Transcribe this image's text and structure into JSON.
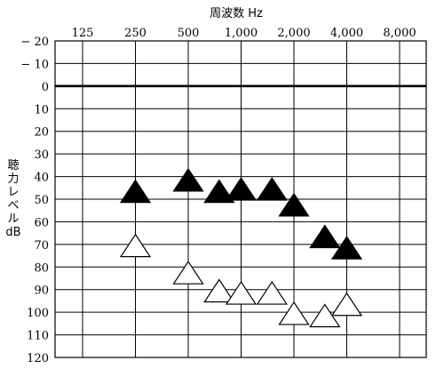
{
  "chart_data": {
    "type": "scatter",
    "title": "周波数 Hz",
    "ylabel_lines": [
      "聴",
      "力",
      "レ",
      "ベ",
      "ル",
      "dB"
    ],
    "x_ticks": [
      {
        "label": "125",
        "hz": 125
      },
      {
        "label": "250",
        "hz": 250
      },
      {
        "label": "500",
        "hz": 500
      },
      {
        "label": "1,000",
        "hz": 1000
      },
      {
        "label": "2,000",
        "hz": 2000
      },
      {
        "label": "4,000",
        "hz": 4000
      },
      {
        "label": "8,000",
        "hz": 8000
      }
    ],
    "x_scale": "log2",
    "xlim": [
      125,
      8000
    ],
    "y_ticks": [
      {
        "label": "− 20",
        "value": -20
      },
      {
        "label": "− 10",
        "value": -10
      },
      {
        "label": "0",
        "value": 0
      },
      {
        "label": "10",
        "value": 10
      },
      {
        "label": "20",
        "value": 20
      },
      {
        "label": "30",
        "value": 30
      },
      {
        "label": "40",
        "value": 40
      },
      {
        "label": "50",
        "value": 50
      },
      {
        "label": "60",
        "value": 60
      },
      {
        "label": "70",
        "value": 70
      },
      {
        "label": "80",
        "value": 80
      },
      {
        "label": "90",
        "value": 90
      },
      {
        "label": "100",
        "value": 100
      },
      {
        "label": "110",
        "value": 110
      },
      {
        "label": "120",
        "value": 120
      }
    ],
    "ylim": [
      -20,
      120
    ],
    "y_inverted": true,
    "reference_line_db": 0,
    "grid": true,
    "series": [
      {
        "marker": "filled-triangle",
        "color": "#000000",
        "points": [
          {
            "x": 250,
            "y": 47
          },
          {
            "x": 500,
            "y": 42
          },
          {
            "x": 750,
            "y": 47
          },
          {
            "x": 1000,
            "y": 46
          },
          {
            "x": 1500,
            "y": 46
          },
          {
            "x": 2000,
            "y": 53
          },
          {
            "x": 3000,
            "y": 67
          },
          {
            "x": 4000,
            "y": 72
          }
        ]
      },
      {
        "marker": "open-triangle",
        "color": "#000000",
        "points": [
          {
            "x": 250,
            "y": 71
          },
          {
            "x": 500,
            "y": 83
          },
          {
            "x": 750,
            "y": 91
          },
          {
            "x": 1000,
            "y": 92
          },
          {
            "x": 1500,
            "y": 92
          },
          {
            "x": 2000,
            "y": 101
          },
          {
            "x": 3000,
            "y": 102
          },
          {
            "x": 4000,
            "y": 97
          }
        ]
      }
    ]
  }
}
